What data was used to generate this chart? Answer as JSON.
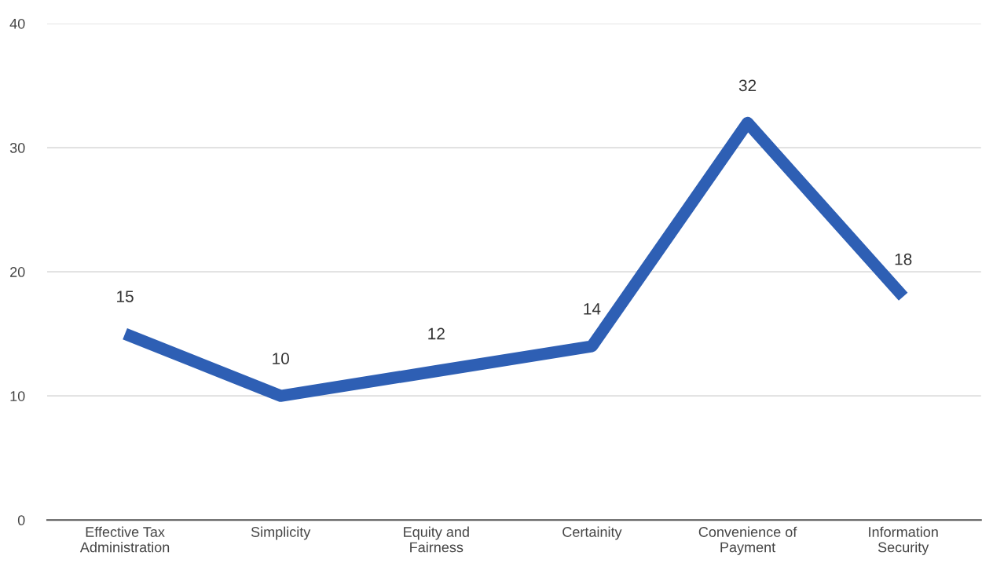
{
  "chart_data": {
    "type": "line",
    "categories": [
      "Effective Tax\nAdministration",
      "Simplicity",
      "Equity and\nFairness",
      "Certainity",
      "Convenience of\nPayment",
      "Information\nSecurity"
    ],
    "series": [
      {
        "color": "#2e5fb4",
        "values": [
          15,
          10,
          12,
          14,
          32,
          18
        ]
      }
    ],
    "ylim": [
      0,
      40
    ],
    "yticks": [
      0,
      10,
      20,
      30,
      40
    ],
    "grid": "y",
    "data_labels": true,
    "marker": "none",
    "line_style": "solid"
  }
}
